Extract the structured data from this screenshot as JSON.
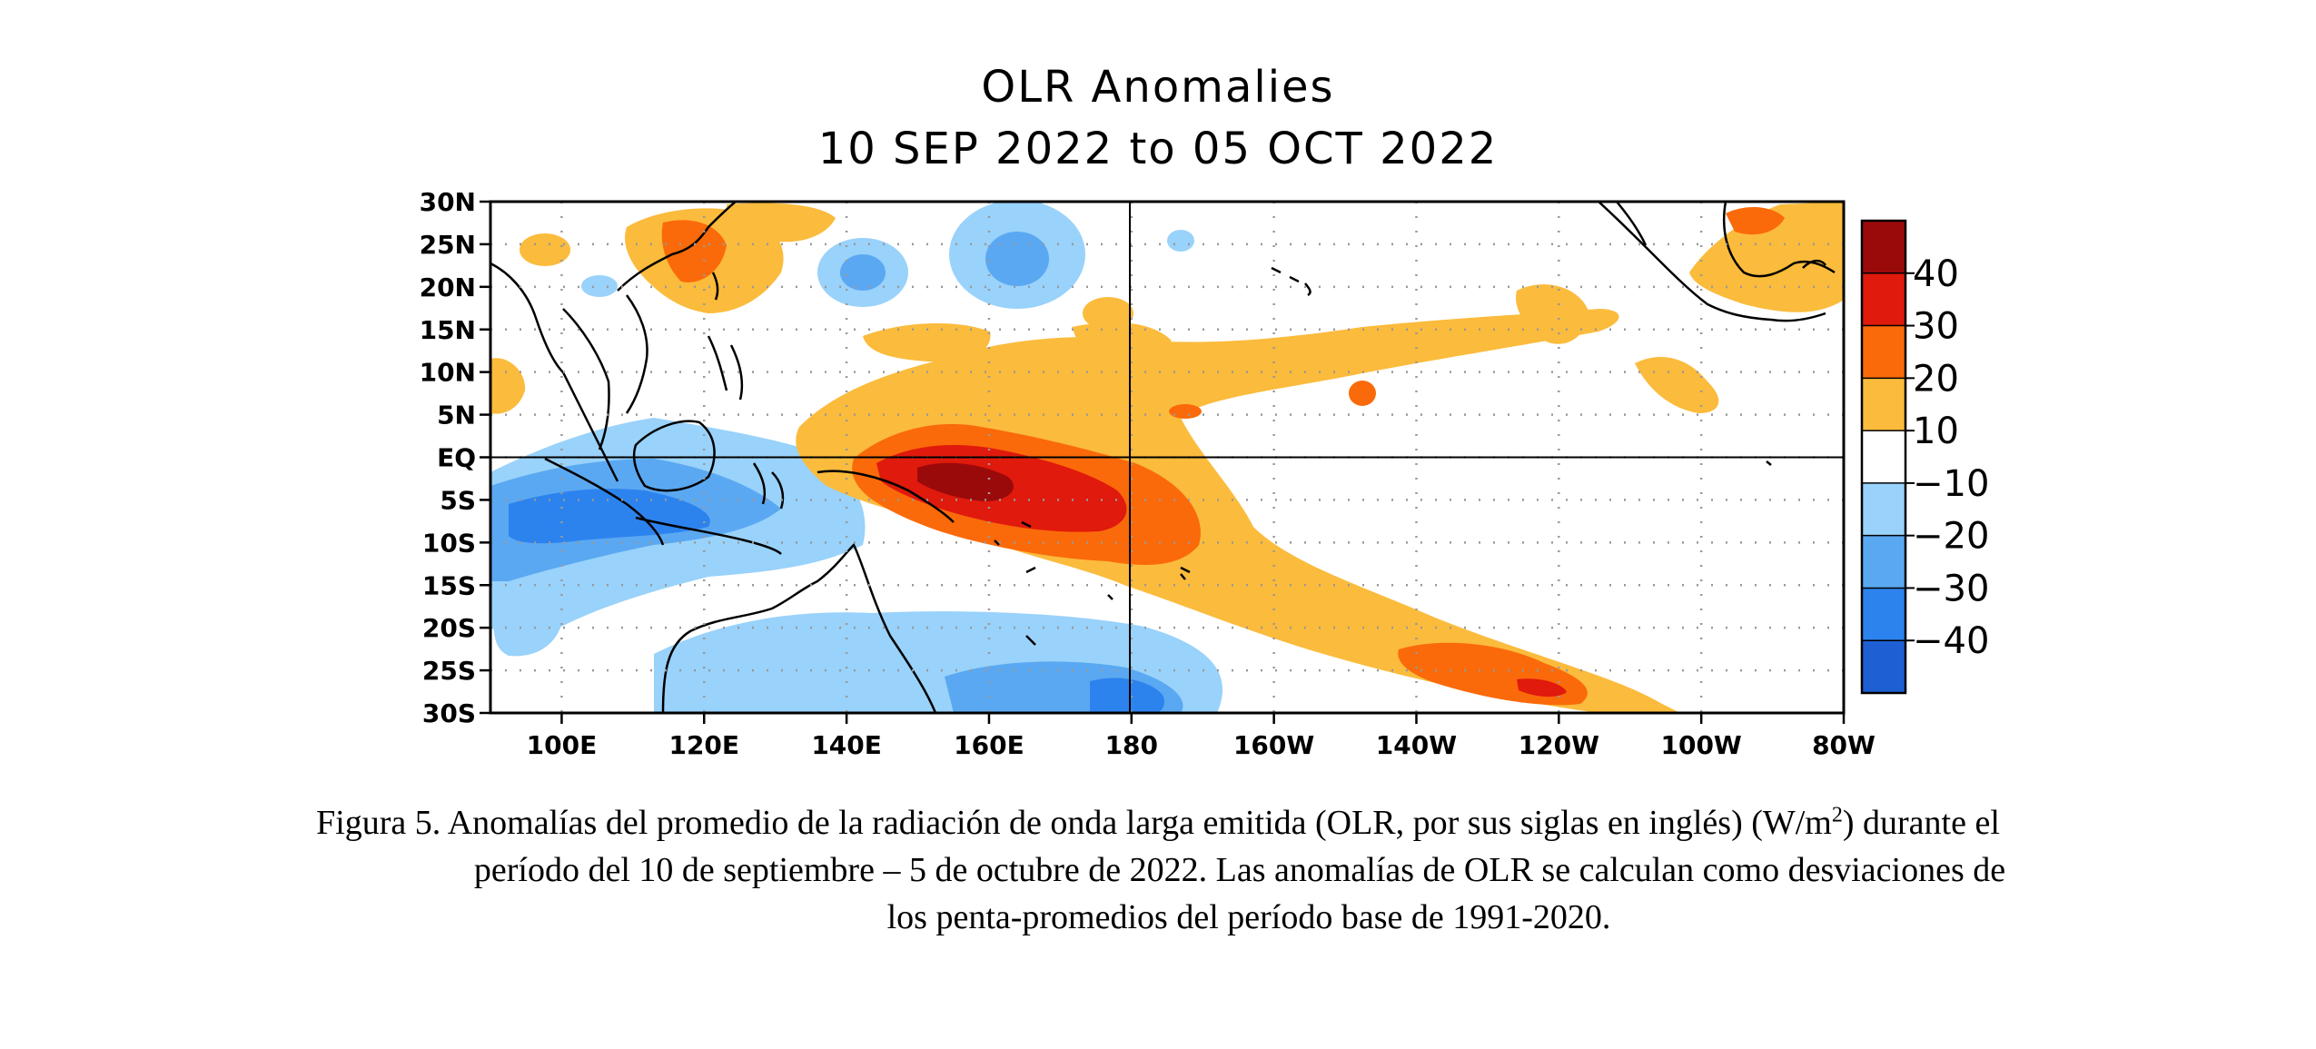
{
  "figure": {
    "title_line1": "OLR Anomalies",
    "title_line2": "10 SEP 2022 to 05 OCT 2022"
  },
  "axes": {
    "x_ticks": [
      "100E",
      "120E",
      "140E",
      "160E",
      "180",
      "160W",
      "140W",
      "120W",
      "100W",
      "80W"
    ],
    "x_tick_lon": [
      100,
      120,
      140,
      160,
      180,
      200,
      220,
      240,
      260,
      280
    ],
    "y_ticks": [
      "30N",
      "25N",
      "20N",
      "15N",
      "10N",
      "5N",
      "EQ",
      "5S",
      "10S",
      "15S",
      "20S",
      "25S",
      "30S"
    ],
    "y_tick_lat": [
      30,
      25,
      20,
      15,
      10,
      5,
      0,
      -5,
      -10,
      -15,
      -20,
      -25,
      -30
    ],
    "lon_range": [
      90,
      280
    ],
    "lat_range": [
      -30,
      30
    ],
    "grid": "dotted"
  },
  "colorbar": {
    "labels": [
      "40",
      "30",
      "20",
      "10",
      "−10",
      "−20",
      "−30",
      "−40"
    ],
    "colors": [
      "#9b0a0a",
      "#e01a0c",
      "#fa6a0a",
      "#fbbb3c",
      "#ffffff",
      "#99d2fa",
      "#5ba8f2",
      "#2d83ee",
      "#1e60d4"
    ]
  },
  "caption": {
    "line1": "Figura 5. Anomalías del promedio de la radiación de onda larga emitida (OLR, por sus siglas en inglés) (W/m",
    "sup": "2",
    "line1_end": ") durante el",
    "line2": "período del 10 de septiembre – 5 de octubre de 2022.  Las anomalías de OLR se calculan como desviaciones de",
    "line3": "los penta-promedios del período base de 1991-2020."
  }
}
